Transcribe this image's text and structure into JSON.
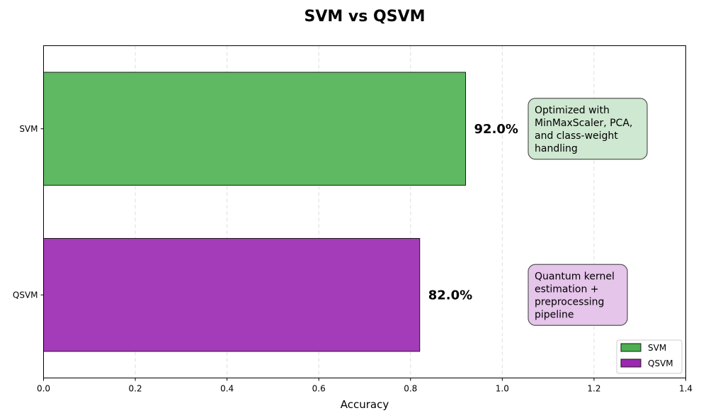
{
  "chart_data": {
    "type": "bar",
    "orientation": "horizontal",
    "title": "SVM vs QSVM",
    "xlabel": "Accuracy",
    "ylabel": "",
    "xlim": [
      0,
      1.4
    ],
    "xticks": [
      "0.0",
      "0.2",
      "0.4",
      "0.6",
      "0.8",
      "1.0",
      "1.2",
      "1.4"
    ],
    "grid": "x-dashed",
    "legend_position": "lower-right",
    "categories": [
      "SVM",
      "QSVM"
    ],
    "values": [
      0.92,
      0.82
    ],
    "value_labels": [
      "92.0%",
      "82.0%"
    ],
    "colors": [
      "#5fb962",
      "#a43bb8"
    ],
    "legend": [
      {
        "name": "SVM",
        "color": "#4caf50"
      },
      {
        "name": "QSVM",
        "color": "#9c27b0"
      }
    ],
    "annotations": [
      {
        "category": "SVM",
        "lines": [
          "Optimized with",
          "MinMaxScaler, PCA,",
          "and class-weight",
          "handling"
        ],
        "fill": "#cfe8d1"
      },
      {
        "category": "QSVM",
        "lines": [
          "Quantum kernel",
          "estimation +",
          "preprocessing",
          "pipeline"
        ],
        "fill": "#e5c5ea"
      }
    ]
  }
}
